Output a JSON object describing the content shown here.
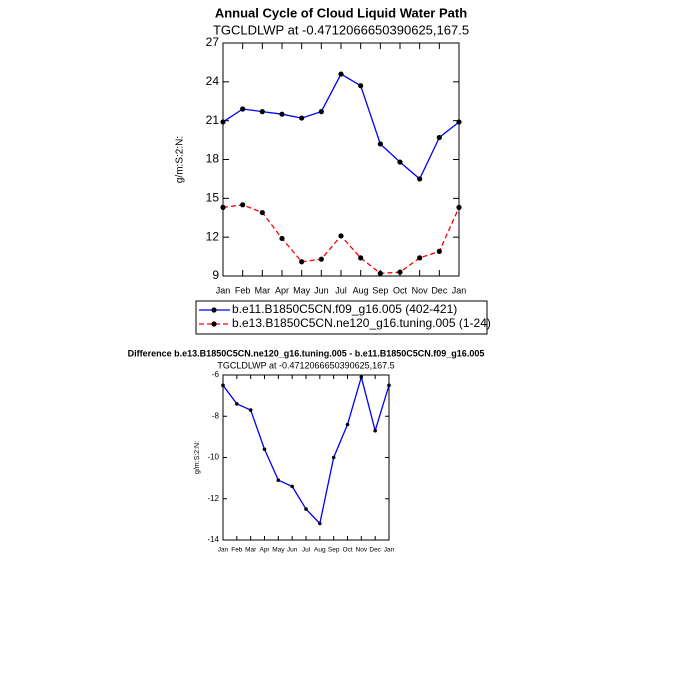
{
  "chart_data": [
    {
      "type": "line",
      "title": "Annual Cycle of Cloud Liquid Water Path",
      "subtitle": "TGCLDLWP at -0.4712066650390625,167.5",
      "y_label": "g/m:S:2:N:",
      "categories": [
        "Jan",
        "Feb",
        "Mar",
        "Apr",
        "May",
        "Jun",
        "Jul",
        "Aug",
        "Sep",
        "Oct",
        "Nov",
        "Dec",
        "Jan"
      ],
      "ylim": [
        9,
        27
      ],
      "yticks": [
        9,
        12,
        15,
        18,
        21,
        24,
        27
      ],
      "legend": "bottom",
      "marker_color": "#000000",
      "series": [
        {
          "name": "b.e11.B1850C5CN.f09_g16.005 (402-421)",
          "color": "#0000ff",
          "dashed": false,
          "values": [
            20.9,
            21.9,
            21.7,
            21.5,
            21.2,
            21.7,
            24.6,
            23.7,
            19.2,
            17.8,
            16.5,
            19.7,
            20.9
          ]
        },
        {
          "name": "b.e13.B1850C5CN.ne120_g16.tuning.005 (1-24)",
          "color": "#ff0000",
          "dashed": true,
          "values": [
            14.3,
            14.5,
            13.9,
            11.9,
            10.1,
            10.3,
            12.1,
            10.4,
            9.2,
            9.3,
            10.4,
            10.9,
            14.3
          ]
        }
      ]
    },
    {
      "type": "line",
      "title": "Difference b.e13.B1850C5CN.ne120_g16.tuning.005 - b.e11.B1850C5CN.f09_g16.005",
      "subtitle": "TGCLDLWP at -0.4712066650390625,167.5",
      "y_label": "g/m:S:2:N:",
      "categories": [
        "Jan",
        "Feb",
        "Mar",
        "Apr",
        "May",
        "Jun",
        "Jul",
        "Aug",
        "Sep",
        "Oct",
        "Nov",
        "Dec",
        "Jan"
      ],
      "ylim": [
        -14,
        -6
      ],
      "yticks": [
        -14,
        -12,
        -10,
        -8,
        -6
      ],
      "marker_color": "#000000",
      "series": [
        {
          "color": "#0000ff",
          "dashed": false,
          "values": [
            -6.5,
            -7.4,
            -7.7,
            -9.6,
            -11.1,
            -11.4,
            -12.5,
            -13.2,
            -10.0,
            -8.4,
            -6.1,
            -8.7,
            -6.5
          ]
        }
      ]
    }
  ]
}
